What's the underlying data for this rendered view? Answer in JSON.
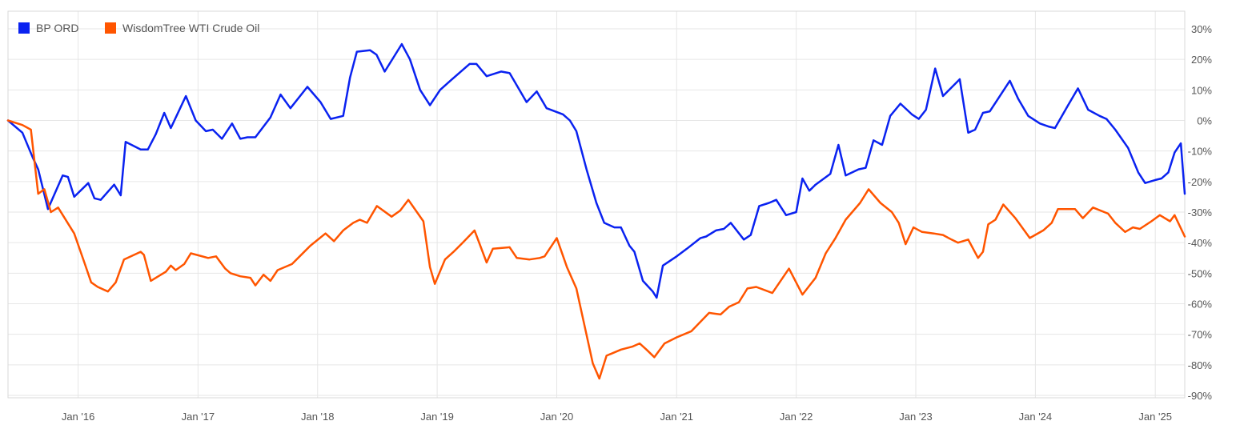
{
  "chart_data": {
    "type": "line",
    "title": "",
    "xlabel": "",
    "ylabel": "",
    "ylim": [
      -90,
      30
    ],
    "xlim": [
      "2015-06-01",
      "2025-04-01"
    ],
    "y_ticks": [
      30,
      20,
      10,
      0,
      -10,
      -20,
      -30,
      -40,
      -50,
      -60,
      -70,
      -80,
      -90
    ],
    "y_tick_labels": [
      "30%",
      "20%",
      "10%",
      "0%",
      "-10%",
      "-20%",
      "-30%",
      "-40%",
      "-50%",
      "-60%",
      "-70%",
      "-80%",
      "-90%"
    ],
    "x_ticks": [
      "2016-01-01",
      "2017-01-01",
      "2018-01-01",
      "2019-01-01",
      "2020-01-01",
      "2021-01-01",
      "2022-01-01",
      "2023-01-01",
      "2024-01-01",
      "2025-01-01"
    ],
    "x_tick_labels": [
      "Jan '16",
      "Jan '17",
      "Jan '18",
      "Jan '19",
      "Jan '20",
      "Jan '21",
      "Jan '22",
      "Jan '23",
      "Jan '24",
      "Jan '25"
    ],
    "grid": true,
    "legend_position": "top-left",
    "series": [
      {
        "name": "BP ORD",
        "color": "#0a22f0",
        "points": [
          [
            "2015-06-01",
            0
          ],
          [
            "2015-07-15",
            -4
          ],
          [
            "2015-08-15",
            -12
          ],
          [
            "2015-09-01",
            -16
          ],
          [
            "2015-10-01",
            -29
          ],
          [
            "2015-11-15",
            -18
          ],
          [
            "2015-12-01",
            -18.5
          ],
          [
            "2015-12-20",
            -25
          ],
          [
            "2016-02-01",
            -20.5
          ],
          [
            "2016-02-20",
            -25.5
          ],
          [
            "2016-03-10",
            -26
          ],
          [
            "2016-04-20",
            -21
          ],
          [
            "2016-05-10",
            -24.5
          ],
          [
            "2016-05-25",
            -7
          ],
          [
            "2016-07-10",
            -9.5
          ],
          [
            "2016-08-01",
            -9.5
          ],
          [
            "2016-08-25",
            -4.5
          ],
          [
            "2016-09-20",
            2.5
          ],
          [
            "2016-10-10",
            -2.5
          ],
          [
            "2016-11-25",
            8
          ],
          [
            "2016-12-25",
            0
          ],
          [
            "2017-01-25",
            -3.5
          ],
          [
            "2017-02-15",
            -3
          ],
          [
            "2017-03-15",
            -6
          ],
          [
            "2017-04-15",
            -1
          ],
          [
            "2017-05-10",
            -6
          ],
          [
            "2017-06-01",
            -5.5
          ],
          [
            "2017-06-25",
            -5.5
          ],
          [
            "2017-08-10",
            1
          ],
          [
            "2017-09-10",
            8.5
          ],
          [
            "2017-10-10",
            4
          ],
          [
            "2017-12-01",
            11
          ],
          [
            "2018-01-10",
            6
          ],
          [
            "2018-02-10",
            0.5
          ],
          [
            "2018-03-20",
            1.5
          ],
          [
            "2018-04-10",
            14
          ],
          [
            "2018-05-01",
            22.5
          ],
          [
            "2018-06-10",
            23
          ],
          [
            "2018-06-30",
            21.5
          ],
          [
            "2018-07-25",
            16
          ],
          [
            "2018-09-15",
            25
          ],
          [
            "2018-10-10",
            20
          ],
          [
            "2018-11-10",
            10
          ],
          [
            "2018-12-10",
            5
          ],
          [
            "2019-01-10",
            10
          ],
          [
            "2019-02-10",
            13
          ],
          [
            "2019-04-10",
            18.5
          ],
          [
            "2019-05-01",
            18.5
          ],
          [
            "2019-06-01",
            14.5
          ],
          [
            "2019-07-15",
            16
          ],
          [
            "2019-08-10",
            15.5
          ],
          [
            "2019-10-01",
            6
          ],
          [
            "2019-11-01",
            9.5
          ],
          [
            "2019-12-01",
            4
          ],
          [
            "2020-01-20",
            2
          ],
          [
            "2020-02-10",
            0
          ],
          [
            "2020-03-01",
            -3.5
          ],
          [
            "2020-04-01",
            -16
          ],
          [
            "2020-05-01",
            -27
          ],
          [
            "2020-05-25",
            -33.5
          ],
          [
            "2020-06-25",
            -35
          ],
          [
            "2020-07-15",
            -35
          ],
          [
            "2020-08-10",
            -41
          ],
          [
            "2020-08-25",
            -43
          ],
          [
            "2020-09-20",
            -52.5
          ],
          [
            "2020-10-20",
            -56
          ],
          [
            "2020-11-01",
            -58
          ],
          [
            "2020-11-20",
            -47.5
          ],
          [
            "2021-01-01",
            -44.5
          ],
          [
            "2021-02-01",
            -42
          ],
          [
            "2021-03-15",
            -38.5
          ],
          [
            "2021-04-01",
            -38
          ],
          [
            "2021-05-01",
            -36
          ],
          [
            "2021-05-25",
            -35.5
          ],
          [
            "2021-06-15",
            -33.5
          ],
          [
            "2021-07-25",
            -39
          ],
          [
            "2021-08-15",
            -37.5
          ],
          [
            "2021-09-10",
            -28
          ],
          [
            "2021-10-10",
            -27
          ],
          [
            "2021-11-01",
            -26
          ],
          [
            "2021-12-01",
            -31
          ],
          [
            "2022-01-01",
            -30
          ],
          [
            "2022-01-20",
            -19
          ],
          [
            "2022-02-10",
            -23
          ],
          [
            "2022-03-01",
            -21
          ],
          [
            "2022-04-15",
            -17.5
          ],
          [
            "2022-05-10",
            -8
          ],
          [
            "2022-06-01",
            -18
          ],
          [
            "2022-07-10",
            -16
          ],
          [
            "2022-08-01",
            -15.5
          ],
          [
            "2022-08-25",
            -6.5
          ],
          [
            "2022-09-20",
            -8
          ],
          [
            "2022-10-15",
            1.5
          ],
          [
            "2022-11-15",
            5.5
          ],
          [
            "2022-12-20",
            2
          ],
          [
            "2023-01-10",
            0.5
          ],
          [
            "2023-02-01",
            3.5
          ],
          [
            "2023-03-01",
            17
          ],
          [
            "2023-03-25",
            8
          ],
          [
            "2023-05-15",
            13.5
          ],
          [
            "2023-06-10",
            -4
          ],
          [
            "2023-07-01",
            -3
          ],
          [
            "2023-07-25",
            2.5
          ],
          [
            "2023-08-15",
            3
          ],
          [
            "2023-10-15",
            13
          ],
          [
            "2023-11-10",
            7
          ],
          [
            "2023-12-10",
            1.5
          ],
          [
            "2024-01-15",
            -1
          ],
          [
            "2024-02-10",
            -2
          ],
          [
            "2024-03-01",
            -2.5
          ],
          [
            "2024-04-10",
            5
          ],
          [
            "2024-05-10",
            10.5
          ],
          [
            "2024-06-10",
            3.5
          ],
          [
            "2024-07-15",
            1.5
          ],
          [
            "2024-08-05",
            0.5
          ],
          [
            "2024-09-01",
            -3
          ],
          [
            "2024-10-10",
            -9
          ],
          [
            "2024-11-10",
            -17
          ],
          [
            "2024-12-01",
            -20.5
          ],
          [
            "2025-01-01",
            -19.5
          ],
          [
            "2025-01-20",
            -19
          ],
          [
            "2025-02-10",
            -17
          ],
          [
            "2025-03-01",
            -10.5
          ],
          [
            "2025-03-20",
            -7.5
          ],
          [
            "2025-04-01",
            -24
          ]
        ]
      },
      {
        "name": "WisdomTree WTI Crude Oil",
        "color": "#ff5500",
        "points": [
          [
            "2015-06-01",
            0
          ],
          [
            "2015-07-15",
            -1.5
          ],
          [
            "2015-08-10",
            -3
          ],
          [
            "2015-09-01",
            -24
          ],
          [
            "2015-09-20",
            -22.5
          ],
          [
            "2015-10-10",
            -30
          ],
          [
            "2015-11-01",
            -28.5
          ],
          [
            "2015-12-20",
            -37
          ],
          [
            "2016-01-20",
            -46.5
          ],
          [
            "2016-02-10",
            -53
          ],
          [
            "2016-03-01",
            -54.5
          ],
          [
            "2016-04-01",
            -56
          ],
          [
            "2016-04-25",
            -53
          ],
          [
            "2016-05-20",
            -45.5
          ],
          [
            "2016-06-20",
            -44
          ],
          [
            "2016-07-10",
            -43
          ],
          [
            "2016-07-20",
            -44
          ],
          [
            "2016-08-10",
            -52.5
          ],
          [
            "2016-09-10",
            -50.5
          ],
          [
            "2016-09-25",
            -49.5
          ],
          [
            "2016-10-10",
            -47.5
          ],
          [
            "2016-10-25",
            -49
          ],
          [
            "2016-11-20",
            -47
          ],
          [
            "2016-12-10",
            -43.5
          ],
          [
            "2017-02-01",
            -45
          ],
          [
            "2017-02-25",
            -44.5
          ],
          [
            "2017-03-25",
            -48.5
          ],
          [
            "2017-04-10",
            -50
          ],
          [
            "2017-05-10",
            -51
          ],
          [
            "2017-06-10",
            -51.5
          ],
          [
            "2017-06-25",
            -54
          ],
          [
            "2017-07-20",
            -50.5
          ],
          [
            "2017-08-10",
            -52.5
          ],
          [
            "2017-09-01",
            -49
          ],
          [
            "2017-10-15",
            -47
          ],
          [
            "2017-12-10",
            -41
          ],
          [
            "2018-01-25",
            -37
          ],
          [
            "2018-02-20",
            -39.5
          ],
          [
            "2018-03-20",
            -36
          ],
          [
            "2018-04-20",
            -33.5
          ],
          [
            "2018-05-10",
            -32.5
          ],
          [
            "2018-06-01",
            -33.5
          ],
          [
            "2018-07-01",
            -28
          ],
          [
            "2018-08-15",
            -31.5
          ],
          [
            "2018-09-10",
            -29.5
          ],
          [
            "2018-10-05",
            -26
          ],
          [
            "2018-11-20",
            -33
          ],
          [
            "2018-12-10",
            -48
          ],
          [
            "2018-12-25",
            -53.5
          ],
          [
            "2019-01-25",
            -45.5
          ],
          [
            "2019-02-20",
            -43
          ],
          [
            "2019-03-20",
            -40
          ],
          [
            "2019-04-25",
            -36
          ],
          [
            "2019-06-01",
            -46.5
          ],
          [
            "2019-06-20",
            -42
          ],
          [
            "2019-08-10",
            -41.5
          ],
          [
            "2019-09-01",
            -45
          ],
          [
            "2019-10-10",
            -45.5
          ],
          [
            "2019-11-10",
            -45
          ],
          [
            "2019-11-25",
            -44.5
          ],
          [
            "2020-01-01",
            -38.5
          ],
          [
            "2020-02-01",
            -48
          ],
          [
            "2020-03-01",
            -55
          ],
          [
            "2020-04-20",
            -79.5
          ],
          [
            "2020-05-10",
            -84.5
          ],
          [
            "2020-06-01",
            -77
          ],
          [
            "2020-07-15",
            -75
          ],
          [
            "2020-08-20",
            -74
          ],
          [
            "2020-09-10",
            -73
          ],
          [
            "2020-10-01",
            -75
          ],
          [
            "2020-10-25",
            -77.5
          ],
          [
            "2020-11-25",
            -73
          ],
          [
            "2021-01-01",
            -71
          ],
          [
            "2021-02-15",
            -69
          ],
          [
            "2021-04-10",
            -63
          ],
          [
            "2021-05-15",
            -63.5
          ],
          [
            "2021-06-10",
            -61
          ],
          [
            "2021-07-10",
            -59.5
          ],
          [
            "2021-08-05",
            -55
          ],
          [
            "2021-09-01",
            -54.5
          ],
          [
            "2021-10-20",
            -56.5
          ],
          [
            "2021-12-10",
            -48.5
          ],
          [
            "2022-01-20",
            -57
          ],
          [
            "2022-03-01",
            -51.5
          ],
          [
            "2022-04-01",
            -43.5
          ],
          [
            "2022-05-01",
            -38.5
          ],
          [
            "2022-06-01",
            -32.5
          ],
          [
            "2022-07-15",
            -27
          ],
          [
            "2022-08-10",
            -22.5
          ],
          [
            "2022-09-15",
            -27
          ],
          [
            "2022-10-20",
            -30
          ],
          [
            "2022-11-10",
            -33.5
          ],
          [
            "2022-12-01",
            -40.5
          ],
          [
            "2022-12-25",
            -35
          ],
          [
            "2023-01-20",
            -36.5
          ],
          [
            "2023-02-25",
            -37
          ],
          [
            "2023-03-25",
            -37.5
          ],
          [
            "2023-04-20",
            -39
          ],
          [
            "2023-05-10",
            -40
          ],
          [
            "2023-06-10",
            -39
          ],
          [
            "2023-07-10",
            -45
          ],
          [
            "2023-07-25",
            -43
          ],
          [
            "2023-08-10",
            -34
          ],
          [
            "2023-09-01",
            -32.5
          ],
          [
            "2023-09-25",
            -27.5
          ],
          [
            "2023-11-01",
            -32
          ],
          [
            "2023-12-15",
            -38.5
          ],
          [
            "2024-01-25",
            -36
          ],
          [
            "2024-02-20",
            -33.5
          ],
          [
            "2024-03-10",
            -29
          ],
          [
            "2024-04-10",
            -29
          ],
          [
            "2024-05-01",
            -29
          ],
          [
            "2024-05-25",
            -32
          ],
          [
            "2024-06-25",
            -28.5
          ],
          [
            "2024-08-10",
            -30.5
          ],
          [
            "2024-09-01",
            -33.5
          ],
          [
            "2024-10-01",
            -36.5
          ],
          [
            "2024-10-25",
            -35
          ],
          [
            "2024-11-15",
            -35.5
          ],
          [
            "2024-12-20",
            -33
          ],
          [
            "2025-01-15",
            -31
          ],
          [
            "2025-02-15",
            -33
          ],
          [
            "2025-03-01",
            -31
          ],
          [
            "2025-04-01",
            -38
          ]
        ]
      }
    ]
  }
}
